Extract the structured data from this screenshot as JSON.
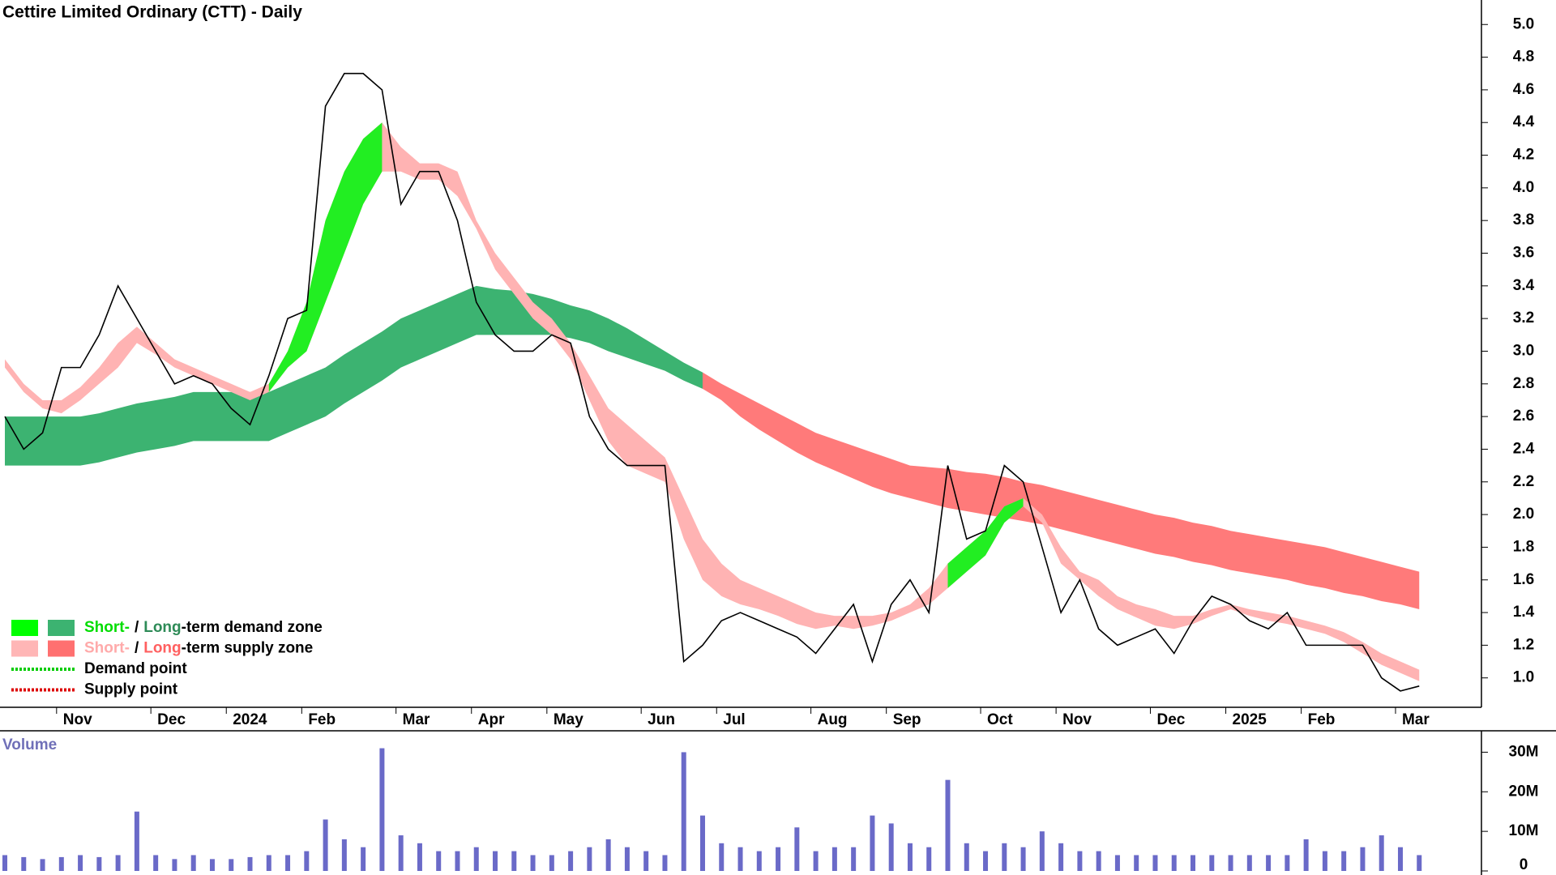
{
  "chart_data": [
    {
      "type": "line",
      "title": "Cettire Limited Ordinary (CTT) - Daily",
      "categories": [
        null,
        null,
        null,
        "Nov",
        null,
        null,
        null,
        null,
        "Dec",
        null,
        null,
        null,
        "2024",
        null,
        null,
        null,
        "Feb",
        null,
        null,
        null,
        null,
        "Mar",
        null,
        null,
        null,
        "Apr",
        null,
        null,
        null,
        "May",
        null,
        null,
        null,
        null,
        "Jun",
        null,
        null,
        null,
        "Jul",
        null,
        null,
        null,
        null,
        "Aug",
        null,
        null,
        null,
        "Sep",
        null,
        null,
        null,
        null,
        "Oct",
        null,
        null,
        null,
        "Nov",
        null,
        null,
        null,
        null,
        "Dec",
        null,
        null,
        null,
        "2025",
        null,
        null,
        null,
        "Feb",
        null,
        null,
        null,
        null,
        "Mar",
        null
      ],
      "series": [
        {
          "color": "#000000",
          "values": [
            2.6,
            2.4,
            2.5,
            2.9,
            2.9,
            3.1,
            3.4,
            3.2,
            3.0,
            2.8,
            2.85,
            2.8,
            2.65,
            2.55,
            2.85,
            3.2,
            3.25,
            4.5,
            4.7,
            4.7,
            4.6,
            3.9,
            4.1,
            4.1,
            3.8,
            3.3,
            3.1,
            3.0,
            3.0,
            3.1,
            3.05,
            2.6,
            2.4,
            2.3,
            2.3,
            2.3,
            1.1,
            1.2,
            1.35,
            1.4,
            1.35,
            1.3,
            1.25,
            1.15,
            1.3,
            1.45,
            1.1,
            1.45,
            1.6,
            1.4,
            2.3,
            1.85,
            1.9,
            2.3,
            2.2,
            1.8,
            1.4,
            1.6,
            1.3,
            1.2,
            1.25,
            1.3,
            1.15,
            1.35,
            1.5,
            1.45,
            1.35,
            1.3,
            1.4,
            1.2,
            1.2,
            1.2,
            1.2,
            1.0,
            0.92,
            0.95
          ]
        }
      ],
      "zones": [
        {
          "color": "#3cb371",
          "upper": [
            2.6,
            2.6,
            2.6,
            2.6,
            2.6,
            2.62,
            2.65,
            2.68,
            2.7,
            2.72,
            2.75,
            2.75,
            2.75,
            2.75,
            2.75,
            2.8,
            2.85,
            2.9,
            2.98,
            3.05,
            3.12,
            3.2,
            3.25,
            3.3,
            3.35,
            3.4,
            3.38,
            3.37,
            3.35,
            3.32,
            3.28,
            3.25,
            3.2,
            3.14,
            3.07,
            3.0,
            2.93,
            2.87,
            null,
            null,
            null,
            null,
            null,
            null,
            null,
            null,
            null,
            null,
            null,
            null,
            null,
            null,
            null,
            null,
            null,
            null,
            null,
            null,
            null,
            null,
            null,
            null,
            null,
            null,
            null,
            null,
            null,
            null,
            null,
            null,
            null,
            null,
            null,
            null,
            null,
            null
          ],
          "lower": [
            2.3,
            2.3,
            2.3,
            2.3,
            2.3,
            2.32,
            2.35,
            2.38,
            2.4,
            2.42,
            2.45,
            2.45,
            2.45,
            2.45,
            2.45,
            2.5,
            2.55,
            2.6,
            2.68,
            2.75,
            2.82,
            2.9,
            2.95,
            3.0,
            3.05,
            3.1,
            3.1,
            3.1,
            3.1,
            3.1,
            3.08,
            3.05,
            3.0,
            2.96,
            2.92,
            2.88,
            2.82,
            2.77,
            null,
            null,
            null,
            null,
            null,
            null,
            null,
            null,
            null,
            null,
            null,
            null,
            null,
            null,
            null,
            null,
            null,
            null,
            null,
            null,
            null,
            null,
            null,
            null,
            null,
            null,
            null,
            null,
            null,
            null,
            null,
            null,
            null,
            null,
            null,
            null,
            null,
            null
          ]
        },
        {
          "color": "#ff7a7a",
          "upper": [
            null,
            null,
            null,
            null,
            null,
            null,
            null,
            null,
            null,
            null,
            null,
            null,
            null,
            null,
            null,
            null,
            null,
            null,
            null,
            null,
            null,
            null,
            null,
            null,
            null,
            null,
            null,
            null,
            null,
            null,
            null,
            null,
            null,
            null,
            null,
            null,
            null,
            2.87,
            2.8,
            2.74,
            2.68,
            2.62,
            2.56,
            2.5,
            2.46,
            2.42,
            2.38,
            2.34,
            2.3,
            2.29,
            2.28,
            2.26,
            2.25,
            2.23,
            2.2,
            2.18,
            2.15,
            2.12,
            2.09,
            2.06,
            2.03,
            2.0,
            1.98,
            1.95,
            1.93,
            1.9,
            1.88,
            1.86,
            1.84,
            1.82,
            1.8,
            1.77,
            1.74,
            1.71,
            1.68,
            1.65
          ],
          "lower": [
            null,
            null,
            null,
            null,
            null,
            null,
            null,
            null,
            null,
            null,
            null,
            null,
            null,
            null,
            null,
            null,
            null,
            null,
            null,
            null,
            null,
            null,
            null,
            null,
            null,
            null,
            null,
            null,
            null,
            null,
            null,
            null,
            null,
            null,
            null,
            null,
            null,
            2.77,
            2.7,
            2.6,
            2.52,
            2.45,
            2.38,
            2.32,
            2.27,
            2.22,
            2.17,
            2.13,
            2.1,
            2.07,
            2.04,
            2.02,
            2.0,
            1.98,
            1.96,
            1.94,
            1.91,
            1.88,
            1.85,
            1.82,
            1.79,
            1.76,
            1.74,
            1.71,
            1.69,
            1.66,
            1.64,
            1.62,
            1.6,
            1.57,
            1.55,
            1.52,
            1.5,
            1.47,
            1.45,
            1.42
          ]
        },
        {
          "color": "#ffb3b3",
          "upper": [
            2.95,
            2.8,
            2.7,
            2.7,
            2.78,
            2.9,
            3.05,
            3.15,
            3.05,
            2.95,
            2.9,
            2.85,
            2.8,
            2.75,
            2.8,
            3.0,
            3.3,
            3.8,
            4.1,
            4.3,
            4.4,
            4.25,
            4.15,
            4.15,
            4.1,
            3.8,
            3.6,
            3.45,
            3.3,
            3.2,
            3.05,
            2.85,
            2.65,
            2.55,
            2.45,
            2.35,
            2.1,
            1.85,
            1.7,
            1.6,
            1.55,
            1.5,
            1.45,
            1.4,
            1.38,
            1.38,
            1.38,
            1.4,
            1.45,
            1.55,
            1.7,
            1.8,
            1.9,
            2.05,
            2.1,
            2.0,
            1.8,
            1.65,
            1.6,
            1.5,
            1.45,
            1.42,
            1.38,
            1.38,
            1.42,
            1.45,
            1.42,
            1.4,
            1.38,
            1.35,
            1.32,
            1.28,
            1.22,
            1.15,
            1.1,
            1.05
          ],
          "lower": [
            2.9,
            2.75,
            2.65,
            2.62,
            2.7,
            2.8,
            2.9,
            3.05,
            2.98,
            2.9,
            2.85,
            2.8,
            2.75,
            2.7,
            2.75,
            2.9,
            3.0,
            3.3,
            3.6,
            3.9,
            4.1,
            4.1,
            4.05,
            4.05,
            3.95,
            3.75,
            3.5,
            3.35,
            3.2,
            3.1,
            2.95,
            2.7,
            2.45,
            2.3,
            2.25,
            2.2,
            1.85,
            1.6,
            1.5,
            1.45,
            1.42,
            1.38,
            1.33,
            1.3,
            1.32,
            1.3,
            1.32,
            1.35,
            1.4,
            1.45,
            1.55,
            1.65,
            1.75,
            1.95,
            2.05,
            1.95,
            1.7,
            1.6,
            1.5,
            1.42,
            1.37,
            1.32,
            1.3,
            1.33,
            1.38,
            1.42,
            1.38,
            1.35,
            1.33,
            1.3,
            1.27,
            1.22,
            1.15,
            1.08,
            1.03,
            0.98
          ]
        },
        {
          "color": "#22ee22",
          "upper": [
            null,
            null,
            null,
            null,
            null,
            null,
            null,
            null,
            null,
            null,
            null,
            null,
            null,
            null,
            2.8,
            3.0,
            3.3,
            3.8,
            4.1,
            4.3,
            4.4,
            null,
            null,
            null,
            null,
            null,
            null,
            null,
            null,
            null,
            null,
            null,
            null,
            null,
            null,
            null,
            null,
            null,
            null,
            null,
            null,
            null,
            null,
            null,
            null,
            null,
            null,
            null,
            null,
            null,
            1.7,
            1.8,
            1.9,
            2.05,
            2.1,
            null,
            null,
            null,
            null,
            null,
            null,
            null,
            null,
            null,
            null,
            null,
            null,
            null,
            null,
            null,
            null,
            null,
            null,
            null,
            null,
            null
          ],
          "lower": [
            null,
            null,
            null,
            null,
            null,
            null,
            null,
            null,
            null,
            null,
            null,
            null,
            null,
            null,
            2.75,
            2.9,
            3.0,
            3.3,
            3.6,
            3.9,
            4.1,
            null,
            null,
            null,
            null,
            null,
            null,
            null,
            null,
            null,
            null,
            null,
            null,
            null,
            null,
            null,
            null,
            null,
            null,
            null,
            null,
            null,
            null,
            null,
            null,
            null,
            null,
            null,
            null,
            null,
            1.55,
            1.65,
            1.75,
            1.95,
            2.05,
            null,
            null,
            null,
            null,
            null,
            null,
            null,
            null,
            null,
            null,
            null,
            null,
            null,
            null,
            null,
            null,
            null,
            null,
            null,
            null,
            null
          ]
        }
      ],
      "ylim": [
        0.82,
        5.15
      ],
      "yticks": [
        {
          "value": 1,
          "label": "1.0"
        },
        1.2,
        1.4,
        1.6,
        1.8,
        {
          "value": 2,
          "label": "2.0"
        },
        2.2,
        2.4,
        2.6,
        2.8,
        {
          "value": 3,
          "label": "3.0"
        },
        3.2,
        3.4,
        3.6,
        3.8,
        {
          "value": 4,
          "label": "4.0"
        },
        4.2,
        4.4,
        4.6,
        4.8,
        {
          "value": 5,
          "label": "5.0"
        }
      ],
      "legend": {
        "position": "bottom-left",
        "items": [
          {
            "swatches": [
              "#00ff00",
              "#3cb371"
            ],
            "parts": [
              {
                "text": "Short-",
                "color": "#00dd00"
              },
              {
                "text": "/",
                "color": "#000000"
              },
              {
                "text": "Long",
                "color": "#2e8b57"
              },
              {
                "text": "-term demand zone",
                "color": "#000000"
              }
            ]
          },
          {
            "swatches": [
              "#ffb6b6",
              "#ff7070"
            ],
            "parts": [
              {
                "text": "Short-",
                "color": "#ffaaaa"
              },
              {
                "text": "/",
                "color": "#000000"
              },
              {
                "text": "Long",
                "color": "#ff6060"
              },
              {
                "text": "-term supply zone",
                "color": "#000000"
              }
            ]
          },
          {
            "line": "#00cc00",
            "parts": [
              {
                "text": "Demand point",
                "color": "#000000"
              }
            ]
          },
          {
            "line": "#dd0000",
            "parts": [
              {
                "text": "Supply point",
                "color": "#000000"
              }
            ]
          }
        ]
      }
    },
    {
      "type": "bar",
      "title": "Volume",
      "color": "#6a6ac8",
      "values": [
        4000000,
        3500000,
        3000000,
        3500000,
        4000000,
        3500000,
        4000000,
        15000000,
        4000000,
        3000000,
        4000000,
        3000000,
        3000000,
        3500000,
        4000000,
        4000000,
        5000000,
        13000000,
        8000000,
        6000000,
        31000000,
        9000000,
        7000000,
        5000000,
        5000000,
        6000000,
        5000000,
        5000000,
        4000000,
        4000000,
        5000000,
        6000000,
        8000000,
        6000000,
        5000000,
        4000000,
        30000000,
        14000000,
        7000000,
        6000000,
        5000000,
        6000000,
        11000000,
        5000000,
        6000000,
        6000000,
        14000000,
        12000000,
        7000000,
        6000000,
        23000000,
        7000000,
        5000000,
        7000000,
        6000000,
        10000000,
        7000000,
        5000000,
        5000000,
        4000000,
        4000000,
        4000000,
        4000000,
        4000000,
        4000000,
        4000000,
        4000000,
        4000000,
        4000000,
        8000000,
        5000000,
        5000000,
        6000000,
        9000000,
        6000000,
        4000000
      ],
      "ylim": [
        0,
        35000000
      ],
      "yticks": [
        0,
        {
          "value": 10000000,
          "label": "10M"
        },
        {
          "value": 20000000,
          "label": "20M"
        },
        {
          "value": 30000000,
          "label": "30M"
        }
      ]
    }
  ]
}
